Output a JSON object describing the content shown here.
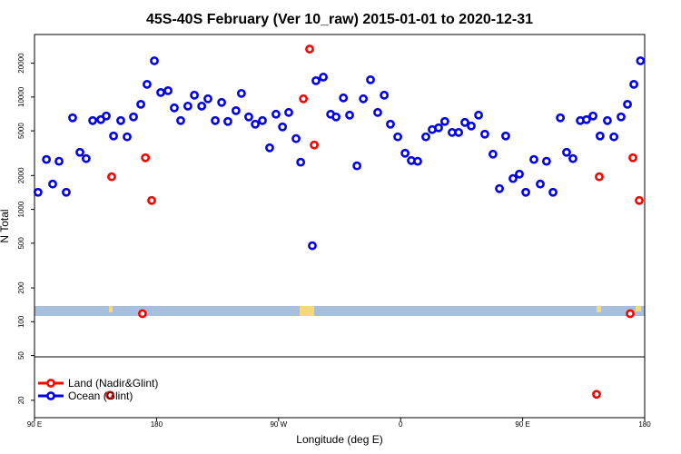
{
  "chart_data": {
    "type": "scatter",
    "title": "45S-40S February (Ver 10_raw)   2015-01-01 to 2020-12-31",
    "x_label": "Longitude (deg E)",
    "y_label": "N Total",
    "log_y": true,
    "xlim": [
      90,
      540
    ],
    "xticks": [
      {
        "value": 90,
        "label": "90 E"
      },
      180,
      {
        "value": 270,
        "label": "90 W"
      },
      {
        "value": 360,
        "label": "0"
      },
      {
        "value": 450,
        "label": "90 E"
      },
      {
        "value": 540,
        "label": "180"
      }
    ],
    "ylim": [
      14,
      36000
    ],
    "yticks": [
      20,
      50,
      100,
      200,
      500,
      1000,
      2000,
      5000,
      10000,
      20000
    ],
    "legend": "bottom-left",
    "series": [
      {
        "name": "Land (Nadir&Glint)",
        "color": "#ff0000",
        "x": [
          146.9,
          169.6,
          171.8,
          176.4,
          288.3,
          292.9,
          296.3,
          145.6,
          504.5,
          506.5,
          529.3,
          531.3,
          536.0
        ],
        "values": [
          1950,
          118,
          2880,
          1200,
          9640,
          26700,
          3740,
          22.2,
          22.6,
          1950,
          118,
          2880,
          1200
        ]
      },
      {
        "name": "Ocean (Glint)",
        "color": "#0000ee",
        "x": [
          92.6,
          98.8,
          103.4,
          108.1,
          113.4,
          118.1,
          123.5,
          128.1,
          132.9,
          138.9,
          142.9,
          148.3,
          153.6,
          158.3,
          163.0,
          168.4,
          173.0,
          178.4,
          183.1,
          188.5,
          193.1,
          197.8,
          203.1,
          207.9,
          213.3,
          217.9,
          223.3,
          228.0,
          232.6,
          238.6,
          242.6,
          248.0,
          252.8,
          258.1,
          263.4,
          268.1,
          272.9,
          277.5,
          282.9,
          286.3,
          294.9,
          297.6,
          303.0,
          308.4,
          312.4,
          317.8,
          322.4,
          327.8,
          332.5,
          337.8,
          343.1,
          347.9,
          352.5,
          357.9,
          363.3,
          367.9,
          372.6,
          378.6,
          383.3,
          388.0,
          392.6,
          398.0,
          402.8,
          407.4,
          412.1,
          417.5,
          422.1,
          428.1,
          432.9,
          437.5,
          442.9,
          447.6,
          452.3,
          458.3,
          463.0,
          467.6,
          472.4,
          477.8,
          482.4,
          487.1,
          492.5,
          497.1,
          501.9,
          507.1,
          512.5,
          517.3,
          522.6,
          527.3,
          532.0,
          536.9
        ],
        "values": [
          1420,
          2780,
          1680,
          2680,
          1420,
          6530,
          3220,
          2830,
          6170,
          6290,
          6780,
          4500,
          6170,
          4420,
          6650,
          8610,
          12970,
          21000,
          10970,
          11380,
          8000,
          6170,
          8300,
          10380,
          8300,
          9640,
          6170,
          8950,
          6060,
          7560,
          10770,
          6650,
          5730,
          6170,
          3530,
          7030,
          5420,
          7290,
          4260,
          2630,
          475,
          13970,
          15040,
          7030,
          6650,
          9820,
          6900,
          2440,
          9640,
          14230,
          7290,
          10380,
          5730,
          4420,
          3160,
          2720,
          2680,
          4420,
          5130,
          5320,
          6060,
          4840,
          4840,
          5940,
          5520,
          6900,
          4670,
          3100,
          1530,
          4500,
          1880,
          2060,
          1420,
          2780,
          1680,
          2680,
          1420,
          6530,
          3220,
          2830,
          6170,
          6290,
          6780,
          4500,
          6170,
          4420,
          6650,
          8610,
          12970,
          21000
        ]
      }
    ]
  }
}
